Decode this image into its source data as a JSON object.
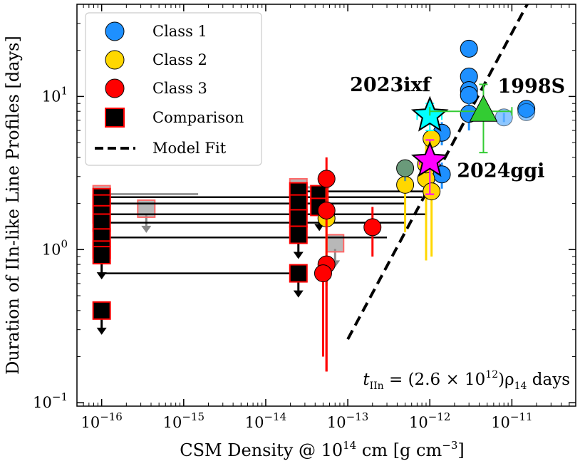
{
  "chart_data": {
    "type": "scatter",
    "xlabel_parts": {
      "prefix": "CSM Density @ 10",
      "sup": "14",
      "suffix": " cm [g cm",
      "sup2": "−3",
      "close": "]"
    },
    "ylabel": "Duration of IIn-like Line Profiles [days]",
    "xscale": "log",
    "yscale": "log",
    "xlim": [
      5e-17,
      6e-11
    ],
    "ylim": [
      0.095,
      40
    ],
    "x_ticks": [
      {
        "value": 1e-16,
        "base": "10",
        "exp": "−16"
      },
      {
        "value": 1e-15,
        "base": "10",
        "exp": "−15"
      },
      {
        "value": 1e-14,
        "base": "10",
        "exp": "−14"
      },
      {
        "value": 1e-13,
        "base": "10",
        "exp": "−13"
      },
      {
        "value": 1e-12,
        "base": "10",
        "exp": "−12"
      },
      {
        "value": 1e-11,
        "base": "10",
        "exp": "−11"
      }
    ],
    "y_ticks": [
      {
        "value": 0.1,
        "base": "10",
        "exp": "−1"
      },
      {
        "value": 1,
        "base": "10",
        "exp": "0"
      },
      {
        "value": 10,
        "base": "10",
        "exp": "1"
      }
    ],
    "legend": {
      "position": "top-left",
      "entries": [
        {
          "label": "Class 1",
          "marker": "circle",
          "color": "#1e90ff"
        },
        {
          "label": "Class 2",
          "marker": "circle",
          "color": "#ffd700"
        },
        {
          "label": "Class 3",
          "marker": "circle",
          "color": "#ff0000"
        },
        {
          "label": "Comparison",
          "marker": "square",
          "color": "#000000",
          "edge": "#ff0000"
        },
        {
          "label": "Model Fit",
          "marker": "dashed-line",
          "color": "#000000"
        }
      ]
    },
    "model_fit": {
      "coefficient": 2600000000000.0,
      "label_parts": {
        "t": "t",
        "sub": "IIn",
        "eq": " = (2.6 × 10",
        "sup": "12",
        "rest": ")ρ",
        "sub2": "14",
        "unit": " days"
      }
    },
    "series": [
      {
        "name": "Class 1",
        "color": "#1e90ff",
        "points": [
          {
            "x": 3e-12,
            "y": 20.5,
            "ylo": 20.5,
            "yhi": 20.5
          },
          {
            "x": 3e-12,
            "y": 13.5,
            "ylo": 12.5,
            "yhi": 14.5
          },
          {
            "x": 3e-12,
            "y": 11.0,
            "ylo": 10.0,
            "yhi": 12.0
          },
          {
            "x": 3e-12,
            "y": 10.2,
            "ylo": 9.5,
            "yhi": 11.0
          },
          {
            "x": 3e-12,
            "y": 7.7,
            "ylo": 6.0,
            "yhi": 9.0
          },
          {
            "x": 1.5e-11,
            "y": 8.3,
            "ylo": 7.2,
            "yhi": 8.8
          },
          {
            "x": 1.4e-12,
            "y": 5.8,
            "ylo": 4.8,
            "yhi": 6.8
          },
          {
            "x": 1.4e-12,
            "y": 3.1,
            "ylo": 2.5,
            "yhi": 3.7
          },
          {
            "x": 8e-12,
            "y": 7.3,
            "ylo": 6.8,
            "yhi": 7.8,
            "faded": true
          },
          {
            "x": 1.5e-11,
            "y": 7.9,
            "ylo": 7.3,
            "yhi": 8.3,
            "faded": true
          }
        ]
      },
      {
        "name": "Class 2",
        "color": "#ffd700",
        "points": [
          {
            "x": 5.5e-14,
            "y": 1.6,
            "ylo": 0.58,
            "yhi": 2.5
          },
          {
            "x": 5e-13,
            "y": 2.65,
            "ylo": 1.3,
            "yhi": 3.2
          },
          {
            "x": 9e-13,
            "y": 2.9,
            "ylo": 0.85,
            "yhi": 3.2
          },
          {
            "x": 9e-13,
            "y": 3.6,
            "ylo": 2.5,
            "yhi": 4.8
          },
          {
            "x": 1.05e-12,
            "y": 5.3,
            "ylo": 3.0,
            "yhi": 5.6
          },
          {
            "x": 1.05e-12,
            "y": 2.4,
            "ylo": 0.9,
            "yhi": 2.5
          },
          {
            "x": 5e-13,
            "y": 3.4,
            "ylo": 2.8,
            "yhi": 3.6,
            "muted": true
          }
        ]
      },
      {
        "name": "Class 3",
        "color": "#ff0000",
        "points": [
          {
            "x": 5.5e-14,
            "y": 2.9,
            "ylo": 1.8,
            "yhi": 4.0
          },
          {
            "x": 5.5e-14,
            "y": 1.8,
            "ylo": 0.16,
            "yhi": 2.0
          },
          {
            "x": 5.5e-14,
            "y": 0.8,
            "ylo": 0.16,
            "yhi": 0.9
          },
          {
            "x": 5e-14,
            "y": 0.7,
            "ylo": 0.2,
            "yhi": 0.85
          },
          {
            "x": 2e-13,
            "y": 1.4,
            "ylo": 0.9,
            "yhi": 1.9
          }
        ]
      }
    ],
    "comparison": {
      "color": "#000000",
      "edge": "#ff0000",
      "points": [
        {
          "x": 1e-16,
          "y": 2.2,
          "xhi": 8e-13,
          "limit": false
        },
        {
          "x": 1e-16,
          "y": 2.0,
          "xhi": 5e-13,
          "limit": false
        },
        {
          "x": 1e-16,
          "y": 1.7,
          "xhi": 9e-13,
          "limit": false
        },
        {
          "x": 1e-16,
          "y": 1.5,
          "xhi": 5e-13,
          "limit": false
        },
        {
          "x": 1e-16,
          "y": 1.2,
          "xhi": 3e-13,
          "limit": false
        },
        {
          "x": 1e-16,
          "y": 1.0,
          "limit": false
        },
        {
          "x": 1e-16,
          "y": 0.92,
          "limit": true
        },
        {
          "x": 1e-16,
          "y": 0.4,
          "limit": true
        },
        {
          "x": 2.5e-14,
          "y": 2.4,
          "xhi": 1e-12,
          "limit": false
        },
        {
          "x": 2.5e-14,
          "y": 2.0,
          "limit": false
        },
        {
          "x": 2.5e-14,
          "y": 1.6,
          "limit": false
        },
        {
          "x": 2.5e-14,
          "y": 1.25,
          "limit": true
        },
        {
          "x": 2.5e-14,
          "y": 0.7,
          "xlo": 1e-16,
          "limit": true
        },
        {
          "x": 4.5e-14,
          "y": 2.3,
          "limit": false
        },
        {
          "x": 4.5e-14,
          "y": 1.9,
          "limit": true
        }
      ],
      "faded_points": [
        {
          "x": 1e-16,
          "y": 2.3,
          "xhi": 1.5e-15
        },
        {
          "x": 3.5e-16,
          "y": 1.85,
          "limit": true
        },
        {
          "x": 2.5e-14,
          "y": 2.55,
          "xhi": 6e-14
        },
        {
          "x": 7e-14,
          "y": 1.1,
          "limit": true
        }
      ]
    },
    "highlights": [
      {
        "name": "2023ixf",
        "marker": "star",
        "color": "#00ffff",
        "x": 1e-12,
        "y": 7.5,
        "xlo": 7e-13,
        "xhi": 1.4e-12,
        "ylo": 6.0,
        "yhi": 9.0,
        "label_color": "#00e5ee",
        "label_side": "upper-left"
      },
      {
        "name": "2024ggi",
        "marker": "star",
        "color": "#ff00ff",
        "x": 1e-12,
        "y": 3.8,
        "xlo": 7.5e-13,
        "xhi": 1.3e-12,
        "ylo": 2.3,
        "yhi": 5.2,
        "label_color": "#ff00ff",
        "label_side": "lower-right"
      },
      {
        "name": "1998S",
        "marker": "triangle",
        "color": "#33cc33",
        "x": 4.5e-12,
        "y": 8.0,
        "xlo": 1e-12,
        "xhi": 1e-11,
        "ylo": 4.3,
        "yhi": 12.0,
        "label_color": "#33cc33",
        "label_side": "upper-right"
      }
    ]
  }
}
